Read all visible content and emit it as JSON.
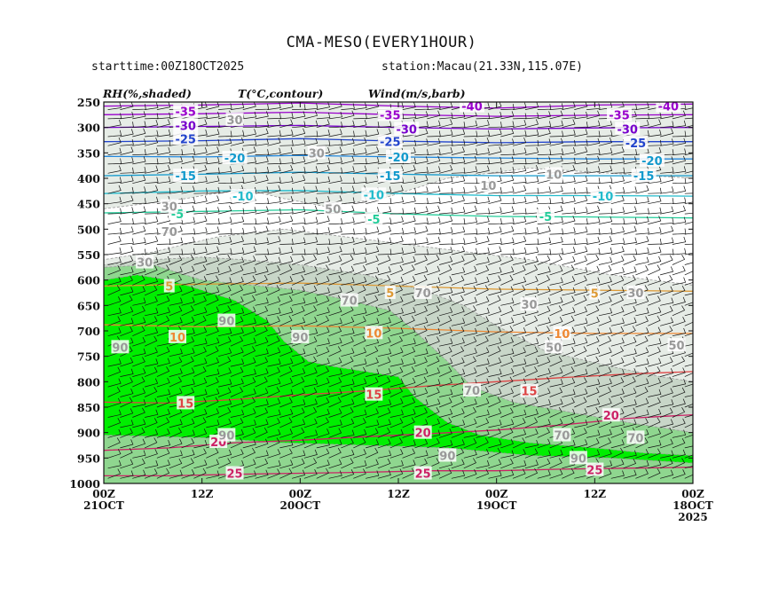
{
  "header": {
    "title": "CMA-MESO(EVERY1HOUR)",
    "starttime": "starttime:00Z18OCT2025",
    "station": "station:Macau(21.33N,115.07E)"
  },
  "legend": {
    "rh": "RH(%,shaded)",
    "temp": "T(°C,contour)",
    "wind": "Wind(m/s,barb)"
  },
  "chart_data": {
    "type": "heatmap",
    "title": "CMA-MESO(EVERY1HOUR)",
    "y_axis": {
      "ticks": [
        "250",
        "300",
        "350",
        "400",
        "450",
        "500",
        "550",
        "600",
        "650",
        "700",
        "750",
        "800",
        "850",
        "900",
        "950",
        "1000"
      ],
      "range": [
        250,
        1000
      ],
      "direction": "top-to-bottom"
    },
    "x_axis": {
      "ticks": [
        {
          "hour": 72,
          "line1": "00Z",
          "line2": "21OCT",
          "line3": ""
        },
        {
          "hour": 60,
          "line1": "12Z",
          "line2": "",
          "line3": ""
        },
        {
          "hour": 48,
          "line1": "00Z",
          "line2": "20OCT",
          "line3": ""
        },
        {
          "hour": 36,
          "line1": "12Z",
          "line2": "",
          "line3": ""
        },
        {
          "hour": 24,
          "line1": "00Z",
          "line2": "19OCT",
          "line3": ""
        },
        {
          "hour": 12,
          "line1": "12Z",
          "line2": "",
          "line3": ""
        },
        {
          "hour": 0,
          "line1": "00Z",
          "line2": "18OCT",
          "line3": "2025"
        }
      ],
      "range": [
        72,
        0
      ],
      "direction": "time increases right-to-left"
    },
    "rh_regions": [
      {
        "level": 30,
        "color": "#e6ece6",
        "polygon": [
          [
            72,
            1000
          ],
          [
            72,
            560
          ],
          [
            66,
            545
          ],
          [
            58,
            515
          ],
          [
            50,
            500
          ],
          [
            40,
            520
          ],
          [
            30,
            540
          ],
          [
            20,
            560
          ],
          [
            10,
            590
          ],
          [
            0,
            610
          ],
          [
            0,
            1000
          ]
        ]
      },
      {
        "level": 50,
        "color": "#c8d6c8",
        "polygon": [
          [
            72,
            1000
          ],
          [
            72,
            570
          ],
          [
            66,
            560
          ],
          [
            60,
            555
          ],
          [
            55,
            560
          ],
          [
            48,
            570
          ],
          [
            40,
            590
          ],
          [
            33,
            620
          ],
          [
            28,
            650
          ],
          [
            24,
            690
          ],
          [
            18,
            740
          ],
          [
            10,
            770
          ],
          [
            4,
            790
          ],
          [
            0,
            800
          ],
          [
            0,
            1000
          ]
        ]
      },
      {
        "level": 70,
        "color": "#8fd68f",
        "polygon": [
          [
            72,
            1000
          ],
          [
            72,
            575
          ],
          [
            66,
            570
          ],
          [
            60,
            600
          ],
          [
            54,
            610
          ],
          [
            48,
            620
          ],
          [
            42,
            640
          ],
          [
            37,
            660
          ],
          [
            34,
            700
          ],
          [
            30,
            760
          ],
          [
            27,
            810
          ],
          [
            22,
            840
          ],
          [
            15,
            860
          ],
          [
            8,
            880
          ],
          [
            0,
            900
          ],
          [
            0,
            1000
          ]
        ]
      },
      {
        "level": 90,
        "color": "#00ee00",
        "polygon": [
          [
            72,
            880
          ],
          [
            72,
            600
          ],
          [
            68,
            590
          ],
          [
            64,
            600
          ],
          [
            60,
            620
          ],
          [
            56,
            640
          ],
          [
            52,
            680
          ],
          [
            50,
            720
          ],
          [
            47,
            760
          ],
          [
            44,
            770
          ],
          [
            40,
            780
          ],
          [
            36,
            790
          ],
          [
            34,
            830
          ],
          [
            30,
            880
          ],
          [
            26,
            905
          ],
          [
            20,
            920
          ],
          [
            12,
            930
          ],
          [
            6,
            940
          ],
          [
            0,
            945
          ],
          [
            0,
            960
          ],
          [
            10,
            950
          ],
          [
            20,
            945
          ],
          [
            30,
            930
          ],
          [
            40,
            925
          ],
          [
            50,
            920
          ],
          [
            60,
            910
          ],
          [
            72,
            905
          ]
        ]
      },
      {
        "level": 30,
        "color": "#e6ece6",
        "polygon": [
          [
            72,
            460
          ],
          [
            62,
            440
          ],
          [
            55,
            420
          ],
          [
            50,
            440
          ],
          [
            45,
            455
          ],
          [
            38,
            440
          ],
          [
            30,
            400
          ],
          [
            20,
            380
          ],
          [
            10,
            390
          ],
          [
            0,
            400
          ],
          [
            0,
            250
          ],
          [
            72,
            250
          ]
        ]
      }
    ],
    "temperature_contours": [
      {
        "value": -40,
        "color": "#9900cc",
        "points": [
          [
            72,
            258
          ],
          [
            60,
            256
          ],
          [
            48,
            252
          ],
          [
            36,
            258
          ],
          [
            24,
            262
          ],
          [
            12,
            256
          ],
          [
            0,
            254
          ]
        ]
      },
      {
        "value": -35,
        "color": "#9900cc",
        "points": [
          [
            72,
            275
          ],
          [
            60,
            273
          ],
          [
            48,
            270
          ],
          [
            36,
            275
          ],
          [
            24,
            278
          ],
          [
            12,
            276
          ],
          [
            0,
            275
          ]
        ]
      },
      {
        "value": -30,
        "color": "#7700cc",
        "points": [
          [
            72,
            300
          ],
          [
            60,
            298
          ],
          [
            48,
            296
          ],
          [
            36,
            300
          ],
          [
            24,
            303
          ],
          [
            12,
            301
          ],
          [
            0,
            300
          ]
        ]
      },
      {
        "value": -25,
        "color": "#2244cc",
        "points": [
          [
            72,
            328
          ],
          [
            60,
            326
          ],
          [
            48,
            322
          ],
          [
            36,
            327
          ],
          [
            24,
            330
          ],
          [
            12,
            328
          ],
          [
            0,
            328
          ]
        ]
      },
      {
        "value": -20,
        "color": "#2288dd",
        "points": [
          [
            72,
            357
          ],
          [
            60,
            358
          ],
          [
            48,
            355
          ],
          [
            36,
            358
          ],
          [
            24,
            360
          ],
          [
            12,
            362
          ],
          [
            0,
            362
          ]
        ]
      },
      {
        "value": -15,
        "color": "#1199cc",
        "points": [
          [
            72,
            395
          ],
          [
            60,
            392
          ],
          [
            48,
            388
          ],
          [
            36,
            392
          ],
          [
            24,
            395
          ],
          [
            12,
            395
          ],
          [
            0,
            395
          ]
        ]
      },
      {
        "value": -10,
        "color": "#22bbcc",
        "points": [
          [
            72,
            430
          ],
          [
            60,
            425
          ],
          [
            48,
            424
          ],
          [
            36,
            430
          ],
          [
            24,
            434
          ],
          [
            12,
            434
          ],
          [
            0,
            435
          ]
        ]
      },
      {
        "value": -5,
        "color": "#22cc99",
        "points": [
          [
            72,
            468
          ],
          [
            60,
            465
          ],
          [
            48,
            462
          ],
          [
            36,
            470
          ],
          [
            24,
            475
          ],
          [
            12,
            476
          ],
          [
            0,
            478
          ]
        ]
      },
      {
        "value": 5,
        "color": "#dd9933",
        "points": [
          [
            72,
            612
          ],
          [
            60,
            608
          ],
          [
            48,
            606
          ],
          [
            36,
            612
          ],
          [
            24,
            618
          ],
          [
            12,
            620
          ],
          [
            0,
            622
          ]
        ]
      },
      {
        "value": 10,
        "color": "#ee8833",
        "points": [
          [
            72,
            688
          ],
          [
            60,
            692
          ],
          [
            48,
            690
          ],
          [
            36,
            695
          ],
          [
            24,
            702
          ],
          [
            12,
            705
          ],
          [
            0,
            705
          ]
        ]
      },
      {
        "value": 15,
        "color": "#dd4444",
        "points": [
          [
            72,
            840
          ],
          [
            64,
            842
          ],
          [
            56,
            835
          ],
          [
            48,
            826
          ],
          [
            40,
            818
          ],
          [
            32,
            808
          ],
          [
            24,
            800
          ],
          [
            16,
            792
          ],
          [
            8,
            785
          ],
          [
            0,
            780
          ]
        ]
      },
      {
        "value": 20,
        "color": "#cc2266",
        "points": [
          [
            72,
            935
          ],
          [
            64,
            930
          ],
          [
            56,
            920
          ],
          [
            48,
            915
          ],
          [
            40,
            908
          ],
          [
            32,
            902
          ],
          [
            24,
            895
          ],
          [
            16,
            885
          ],
          [
            8,
            872
          ],
          [
            0,
            865
          ]
        ]
      },
      {
        "value": 25,
        "color": "#cc2266",
        "points": [
          [
            72,
            985
          ],
          [
            64,
            985
          ],
          [
            56,
            982
          ],
          [
            48,
            980
          ],
          [
            40,
            978
          ],
          [
            32,
            975
          ],
          [
            24,
            975
          ],
          [
            16,
            972
          ],
          [
            8,
            970
          ],
          [
            0,
            968
          ]
        ]
      }
    ],
    "temperature_labels": [
      {
        "text": "-35",
        "x": 62,
        "p": 268,
        "color": "#9900cc"
      },
      {
        "text": "-30",
        "x": 62,
        "p": 296,
        "color": "#7700cc"
      },
      {
        "text": "-25",
        "x": 62,
        "p": 322,
        "color": "#2244cc"
      },
      {
        "text": "-20",
        "x": 56,
        "p": 360,
        "color": "#1199cc"
      },
      {
        "text": "-15",
        "x": 62,
        "p": 395,
        "color": "#1199cc"
      },
      {
        "text": "-10",
        "x": 55,
        "p": 435,
        "color": "#22bbcc"
      },
      {
        "text": "-5",
        "x": 63,
        "p": 470,
        "color": "#22cc99"
      },
      {
        "text": "-35",
        "x": 37,
        "p": 275,
        "color": "#9900cc"
      },
      {
        "text": "-40",
        "x": 27,
        "p": 258,
        "color": "#9900cc"
      },
      {
        "text": "-30",
        "x": 35,
        "p": 303,
        "color": "#7700cc"
      },
      {
        "text": "-25",
        "x": 37,
        "p": 328,
        "color": "#2244cc"
      },
      {
        "text": "-20",
        "x": 36,
        "p": 358,
        "color": "#1199cc"
      },
      {
        "text": "-15",
        "x": 37,
        "p": 395,
        "color": "#1199cc"
      },
      {
        "text": "-10",
        "x": 39,
        "p": 432,
        "color": "#22bbcc"
      },
      {
        "text": "-5",
        "x": 39,
        "p": 480,
        "color": "#22cc99"
      },
      {
        "text": "-35",
        "x": 9,
        "p": 275,
        "color": "#9900cc"
      },
      {
        "text": "-40",
        "x": 3,
        "p": 258,
        "color": "#9900cc"
      },
      {
        "text": "-30",
        "x": 8,
        "p": 303,
        "color": "#7700cc"
      },
      {
        "text": "-25",
        "x": 7,
        "p": 330,
        "color": "#2244cc"
      },
      {
        "text": "-20",
        "x": 5,
        "p": 365,
        "color": "#1199cc"
      },
      {
        "text": "-15",
        "x": 6,
        "p": 395,
        "color": "#1199cc"
      },
      {
        "text": "-10",
        "x": 11,
        "p": 435,
        "color": "#22bbcc"
      },
      {
        "text": "-5",
        "x": 18,
        "p": 475,
        "color": "#22cc99"
      },
      {
        "text": "5",
        "x": 64,
        "p": 612,
        "color": "#dd9933"
      },
      {
        "text": "5",
        "x": 37,
        "p": 625,
        "color": "#dd9933"
      },
      {
        "text": "5",
        "x": 12,
        "p": 626,
        "color": "#dd9933"
      },
      {
        "text": "10",
        "x": 63,
        "p": 712,
        "color": "#ee8833"
      },
      {
        "text": "10",
        "x": 39,
        "p": 704,
        "color": "#ee8833"
      },
      {
        "text": "10",
        "x": 16,
        "p": 705,
        "color": "#ee8833"
      },
      {
        "text": "15",
        "x": 62,
        "p": 842,
        "color": "#dd4444"
      },
      {
        "text": "15",
        "x": 39,
        "p": 825,
        "color": "#dd4444"
      },
      {
        "text": "15",
        "x": 20,
        "p": 818,
        "color": "#dd4444"
      },
      {
        "text": "20",
        "x": 58,
        "p": 918,
        "color": "#cc2266"
      },
      {
        "text": "20",
        "x": 33,
        "p": 900,
        "color": "#cc2266"
      },
      {
        "text": "20",
        "x": 10,
        "p": 866,
        "color": "#cc2266"
      },
      {
        "text": "25",
        "x": 56,
        "p": 980,
        "color": "#cc2266"
      },
      {
        "text": "25",
        "x": 33,
        "p": 980,
        "color": "#cc2266"
      },
      {
        "text": "25",
        "x": 12,
        "p": 973,
        "color": "#cc2266"
      }
    ],
    "rh_labels": [
      {
        "text": "30",
        "x": 56,
        "p": 285
      },
      {
        "text": "30",
        "x": 46,
        "p": 350
      },
      {
        "text": "30",
        "x": 64,
        "p": 455
      },
      {
        "text": "50",
        "x": 44,
        "p": 460
      },
      {
        "text": "70",
        "x": 64,
        "p": 505
      },
      {
        "text": "30",
        "x": 67,
        "p": 565
      },
      {
        "text": "70",
        "x": 42,
        "p": 640
      },
      {
        "text": "70",
        "x": 33,
        "p": 625
      },
      {
        "text": "90",
        "x": 57,
        "p": 680
      },
      {
        "text": "90",
        "x": 48,
        "p": 712
      },
      {
        "text": "90",
        "x": 70,
        "p": 732
      },
      {
        "text": "70",
        "x": 27,
        "p": 817
      },
      {
        "text": "10",
        "x": 25,
        "p": 414
      },
      {
        "text": "10",
        "x": 17,
        "p": 392
      },
      {
        "text": "30",
        "x": 20,
        "p": 648
      },
      {
        "text": "50",
        "x": 17,
        "p": 732
      },
      {
        "text": "30",
        "x": 7,
        "p": 625
      },
      {
        "text": "50",
        "x": 2,
        "p": 728
      },
      {
        "text": "90",
        "x": 57,
        "p": 905
      },
      {
        "text": "90",
        "x": 30,
        "p": 945
      },
      {
        "text": "70",
        "x": 16,
        "p": 905
      },
      {
        "text": "70",
        "x": 7,
        "p": 910
      },
      {
        "text": "90",
        "x": 14,
        "p": 950
      }
    ],
    "wind": {
      "rows": [
        265,
        283,
        300,
        318,
        336,
        354,
        372,
        390,
        410,
        430,
        450,
        470,
        490,
        510,
        530,
        550,
        570,
        590,
        610,
        630,
        650,
        670,
        690,
        710,
        730,
        750,
        770,
        790,
        810,
        830,
        850,
        870,
        890,
        910,
        930,
        950,
        970,
        990
      ],
      "step_hours": 1.5
    },
    "grid": false
  }
}
